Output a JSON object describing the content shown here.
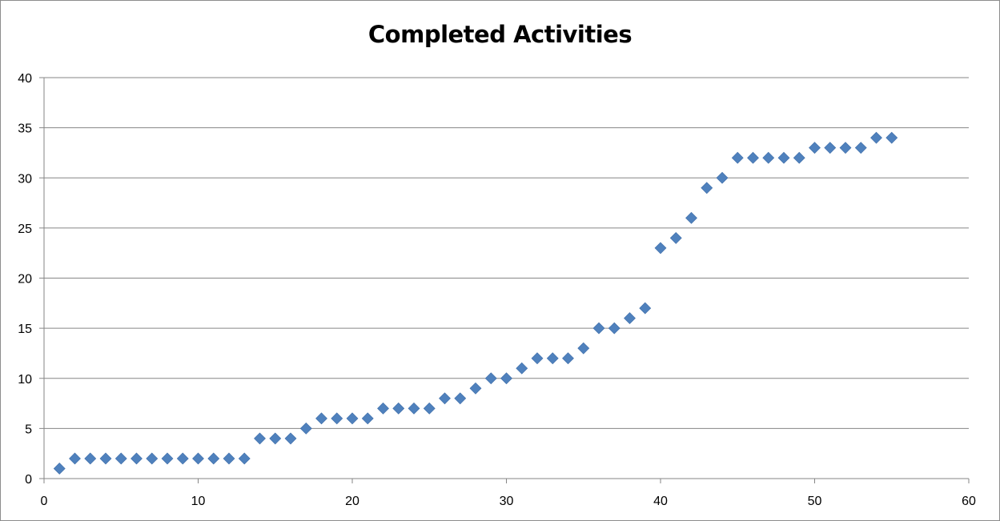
{
  "chart_data": {
    "type": "scatter",
    "title": "Completed Activities",
    "xlabel": "",
    "ylabel": "",
    "xlim": [
      0,
      60
    ],
    "ylim": [
      0,
      40
    ],
    "x_ticks": [
      0,
      10,
      20,
      30,
      40,
      50,
      60
    ],
    "y_ticks": [
      0,
      5,
      10,
      15,
      20,
      25,
      30,
      35,
      40
    ],
    "grid": "horizontal",
    "legend": "none",
    "marker": "diamond",
    "marker_color": "#4f81bd",
    "series": [
      {
        "x": [
          1,
          2,
          3,
          4,
          5,
          6,
          7,
          8,
          9,
          10,
          11,
          12,
          13,
          14,
          15,
          16,
          17,
          18,
          19,
          20,
          21,
          22,
          23,
          24,
          25,
          26,
          27,
          28,
          29,
          30,
          31,
          32,
          33,
          34,
          35,
          36,
          37,
          38,
          39,
          40,
          41,
          42,
          43,
          44,
          45,
          46,
          47,
          48,
          49,
          50,
          51,
          52,
          53,
          54,
          55
        ],
        "y": [
          1,
          2,
          2,
          2,
          2,
          2,
          2,
          2,
          2,
          2,
          2,
          2,
          2,
          4,
          4,
          4,
          5,
          6,
          6,
          6,
          6,
          7,
          7,
          7,
          7,
          8,
          8,
          9,
          10,
          10,
          11,
          12,
          12,
          12,
          13,
          15,
          15,
          16,
          17,
          23,
          24,
          26,
          29,
          30,
          32,
          32,
          32,
          32,
          32,
          33,
          33,
          33,
          33,
          34,
          34
        ]
      }
    ]
  }
}
